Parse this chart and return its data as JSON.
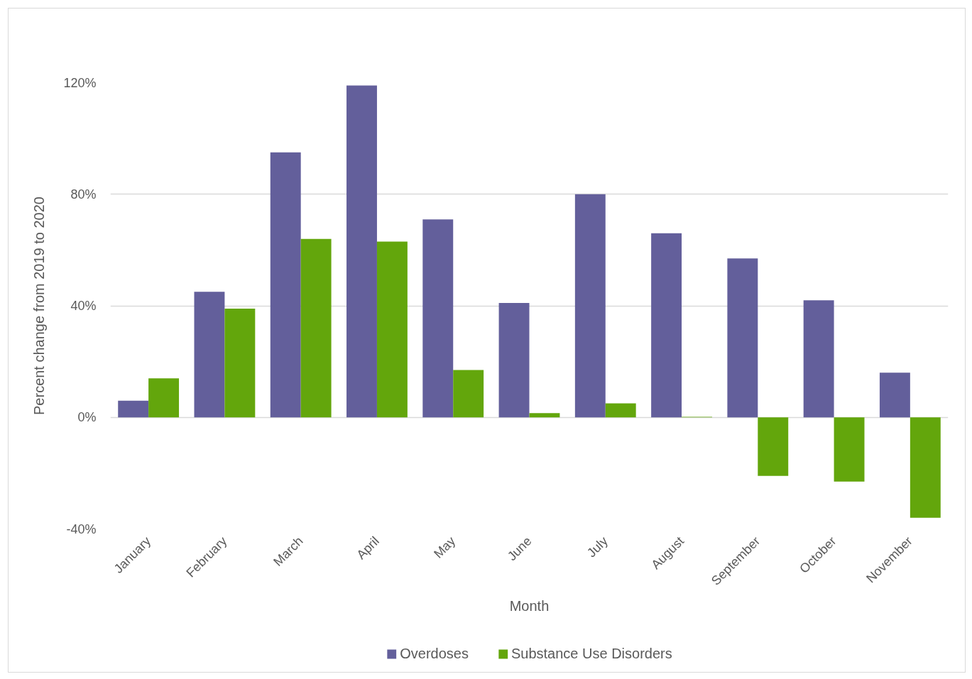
{
  "chart_data": {
    "type": "bar",
    "xlabel": "Month",
    "ylabel": "Percent change from 2019 to 2020",
    "categories": [
      "January",
      "February",
      "March",
      "April",
      "May",
      "June",
      "July",
      "August",
      "September",
      "October",
      "November"
    ],
    "series": [
      {
        "name": "Overdoses",
        "color": "#635f9b",
        "values": [
          6,
          45,
          95,
          119,
          71,
          41,
          80,
          66,
          57,
          42,
          16
        ]
      },
      {
        "name": "Substance Use Disorders",
        "color": "#63a60c",
        "values": [
          14,
          39,
          64,
          63,
          17,
          1.5,
          5,
          0.2,
          -21,
          -23,
          -36
        ]
      }
    ],
    "ylim": [
      -40,
      120
    ],
    "yticks": [
      {
        "value": -40,
        "label": "-40%"
      },
      {
        "value": 0,
        "label": "0%"
      },
      {
        "value": 40,
        "label": "40%"
      },
      {
        "value": 80,
        "label": "80%"
      },
      {
        "value": 120,
        "label": "120%"
      }
    ],
    "grid": "y",
    "legend": "bottom"
  }
}
